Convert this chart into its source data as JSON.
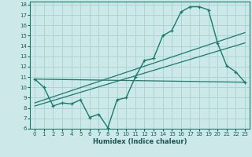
{
  "xlabel": "Humidex (Indice chaleur)",
  "bg_color": "#cce8e8",
  "grid_color": "#aad4d4",
  "line_color": "#1a7a6e",
  "xlim": [
    -0.5,
    23.5
  ],
  "ylim": [
    6,
    18.3
  ],
  "yticks": [
    6,
    7,
    8,
    9,
    10,
    11,
    12,
    13,
    14,
    15,
    16,
    17,
    18
  ],
  "xticks": [
    0,
    1,
    2,
    3,
    4,
    5,
    6,
    7,
    8,
    9,
    10,
    11,
    12,
    13,
    14,
    15,
    16,
    17,
    18,
    19,
    20,
    21,
    22,
    23
  ],
  "line1_x": [
    0,
    1,
    2,
    3,
    4,
    5,
    6,
    7,
    8,
    9,
    10,
    11,
    12,
    13,
    14,
    15,
    16,
    17,
    18,
    19,
    20,
    21,
    22,
    23
  ],
  "line1_y": [
    10.8,
    10.0,
    8.2,
    8.5,
    8.4,
    8.8,
    7.1,
    7.4,
    6.1,
    8.8,
    9.0,
    11.0,
    12.6,
    12.8,
    15.0,
    15.5,
    17.3,
    17.8,
    17.8,
    17.5,
    14.3,
    12.1,
    11.5,
    10.5
  ],
  "line2_x": [
    0,
    23
  ],
  "line2_y": [
    10.8,
    10.5
  ],
  "line3_x": [
    0,
    23
  ],
  "line3_y": [
    8.2,
    14.3
  ],
  "line4_x": [
    0,
    23
  ],
  "line4_y": [
    8.5,
    15.3
  ]
}
